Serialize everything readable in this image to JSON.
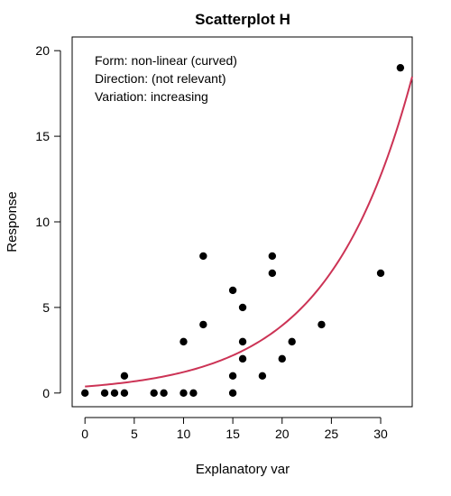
{
  "chart_data": {
    "type": "scatter",
    "title": "Scatterplot H",
    "xlabel": "Explanatory var",
    "ylabel": "Response",
    "xlim": [
      -1.3,
      33.2
    ],
    "ylim": [
      -0.8,
      20.8
    ],
    "xticks": [
      0,
      5,
      10,
      15,
      20,
      25,
      30
    ],
    "yticks": [
      0,
      5,
      10,
      15,
      20
    ],
    "grid": false,
    "annotations": [
      "Form: non-linear (curved)",
      "Direction: (not relevant)",
      "Variation: increasing"
    ],
    "points": [
      {
        "x": 0,
        "y": 0
      },
      {
        "x": 2,
        "y": 0
      },
      {
        "x": 3,
        "y": 0
      },
      {
        "x": 4,
        "y": 0
      },
      {
        "x": 4,
        "y": 1
      },
      {
        "x": 7,
        "y": 0
      },
      {
        "x": 8,
        "y": 0
      },
      {
        "x": 10,
        "y": 0
      },
      {
        "x": 10,
        "y": 3
      },
      {
        "x": 11,
        "y": 0
      },
      {
        "x": 12,
        "y": 8
      },
      {
        "x": 12,
        "y": 4
      },
      {
        "x": 15,
        "y": 6
      },
      {
        "x": 15,
        "y": 1
      },
      {
        "x": 15,
        "y": 0
      },
      {
        "x": 16,
        "y": 5
      },
      {
        "x": 16,
        "y": 3
      },
      {
        "x": 16,
        "y": 2
      },
      {
        "x": 18,
        "y": 1
      },
      {
        "x": 19,
        "y": 8
      },
      {
        "x": 19,
        "y": 7
      },
      {
        "x": 20,
        "y": 2
      },
      {
        "x": 21,
        "y": 3
      },
      {
        "x": 24,
        "y": 4
      },
      {
        "x": 30,
        "y": 7
      },
      {
        "x": 32,
        "y": 19
      }
    ],
    "fit_curve": {
      "type": "exponential",
      "formula": "y = a * exp(b * x)",
      "a": 0.38,
      "b": 0.117,
      "color": "#cc3355"
    },
    "point_color": "#000000"
  }
}
